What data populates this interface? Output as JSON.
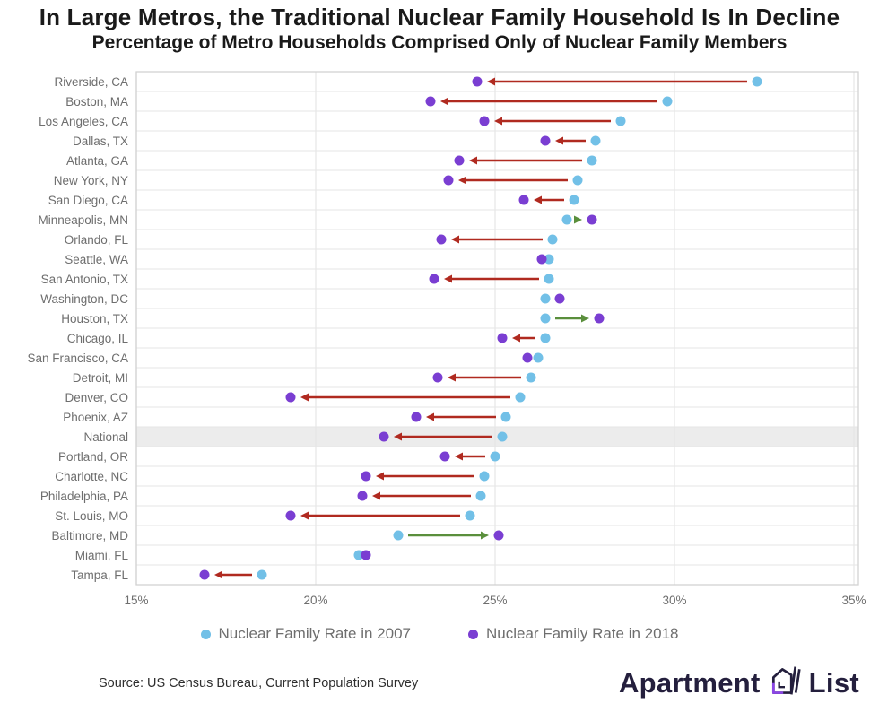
{
  "header": {
    "title": "In Large Metros, the Traditional Nuclear Family Household Is In Decline",
    "subtitle": "Percentage of Metro Households Comprised Only of Nuclear Family Members"
  },
  "legend": {
    "items": [
      {
        "label": "Nuclear Family Rate in 2007",
        "color": "#72c0e7"
      },
      {
        "label": "Nuclear Family Rate in 2018",
        "color": "#7a3ed2"
      }
    ]
  },
  "footer": {
    "source": "Source: US Census Bureau, Current Population Survey",
    "logo": {
      "part1": "Apartment",
      "part2": "List"
    }
  },
  "chart_data": {
    "type": "dumbbell",
    "title": "In Large Metros, the Traditional Nuclear Family Household Is In Decline",
    "subtitle": "Percentage of Metro Households Comprised Only of Nuclear Family Members",
    "xlim": [
      15,
      35
    ],
    "x_ticks": [
      15,
      20,
      25,
      30,
      35
    ],
    "x_tick_labels": [
      "15%",
      "20%",
      "25%",
      "30%",
      "35%"
    ],
    "grid": true,
    "legend_position": "bottom",
    "highlight_category": "National",
    "categories": [
      "Riverside, CA",
      "Boston, MA",
      "Los Angeles, CA",
      "Dallas, TX",
      "Atlanta, GA",
      "New York, NY",
      "San Diego, CA",
      "Minneapolis, MN",
      "Orlando, FL",
      "Seattle, WA",
      "San Antonio, TX",
      "Washington, DC",
      "Houston, TX",
      "Chicago, IL",
      "San Francisco, CA",
      "Detroit, MI",
      "Denver, CO",
      "Phoenix, AZ",
      "National",
      "Portland, OR",
      "Charlotte, NC",
      "Philadelphia, PA",
      "St. Louis, MO",
      "Baltimore, MD",
      "Miami, FL",
      "Tampa, FL"
    ],
    "series": [
      {
        "name": "Nuclear Family Rate in 2007",
        "values": [
          32.3,
          29.8,
          28.5,
          27.8,
          27.7,
          27.3,
          27.2,
          27.0,
          26.6,
          26.5,
          26.5,
          26.4,
          26.4,
          26.4,
          26.2,
          26.0,
          25.7,
          25.3,
          25.2,
          25.0,
          24.7,
          24.6,
          24.3,
          22.3,
          21.2,
          18.5
        ]
      },
      {
        "name": "Nuclear Family Rate in 2018",
        "values": [
          24.5,
          23.2,
          24.7,
          26.4,
          24.0,
          23.7,
          25.8,
          27.7,
          23.5,
          26.3,
          23.3,
          26.8,
          27.9,
          25.2,
          25.9,
          23.4,
          19.3,
          22.8,
          21.9,
          23.6,
          21.4,
          21.3,
          19.3,
          25.1,
          21.4,
          16.9
        ]
      }
    ],
    "arrows": [
      "decline",
      "decline",
      "decline",
      "decline",
      "decline",
      "decline",
      "decline",
      "increase",
      "decline",
      "none",
      "decline",
      "none",
      "increase",
      "decline",
      "none",
      "decline",
      "decline",
      "decline",
      "decline",
      "decline",
      "decline",
      "decline",
      "decline",
      "increase",
      "none",
      "decline"
    ],
    "colors": {
      "rate_2007": "#72c0e7",
      "rate_2018": "#7a3ed2",
      "decline_arrow": "#b02a20",
      "increase_arrow": "#5a8f3c",
      "grid_line": "#e6e6e6",
      "axis_border": "#d2d2d2",
      "highlight_band": "#ececec",
      "label_text": "#6e6e6e"
    }
  }
}
